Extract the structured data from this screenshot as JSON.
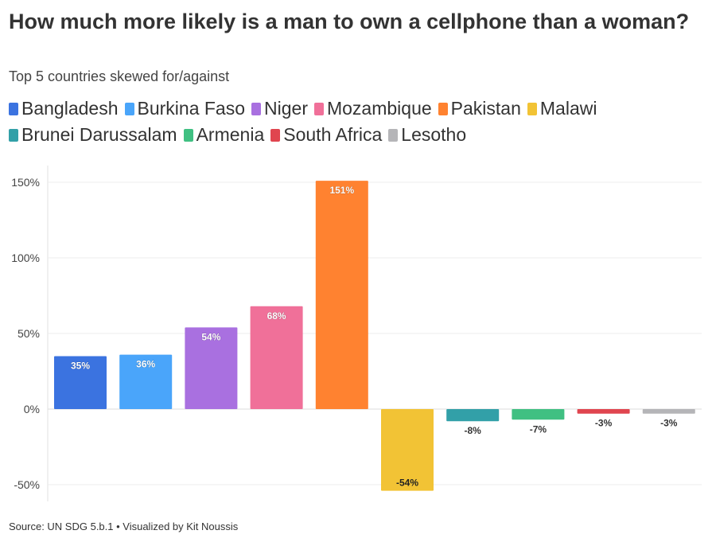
{
  "title": "How much more likely is a man to own a cellphone than a woman?",
  "subtitle": "Top 5 countries skewed for/against",
  "source": "Source: UN SDG 5.b.1 • Visualized by Kit Noussis",
  "chart_data": {
    "type": "bar",
    "categories": [
      "Bangladesh",
      "Burkina Faso",
      "Niger",
      "Mozambique",
      "Pakistan",
      "Malawi",
      "Brunei Darussalam",
      "Armenia",
      "South Africa",
      "Lesotho"
    ],
    "values": [
      35,
      36,
      54,
      68,
      151,
      -54,
      -8,
      -7,
      -3,
      -3
    ],
    "data_labels": [
      "35%",
      "36%",
      "54%",
      "68%",
      "151%",
      "-54%",
      "-8%",
      "-7%",
      "-3%",
      "-3%"
    ],
    "colors": [
      "#3B73E0",
      "#4AA5FA",
      "#A970E0",
      "#F07099",
      "#FF8230",
      "#F2C335",
      "#32A0A8",
      "#40C082",
      "#E0454F",
      "#B5B5B8"
    ],
    "yticks": [
      150,
      100,
      50,
      0,
      -50
    ],
    "ytick_labels": [
      "150%",
      "100%",
      "50%",
      "0%",
      "-50%"
    ],
    "ylim": [
      -60,
      155
    ],
    "grid": true,
    "legend_position": "top",
    "xlabel": "",
    "ylabel": ""
  }
}
